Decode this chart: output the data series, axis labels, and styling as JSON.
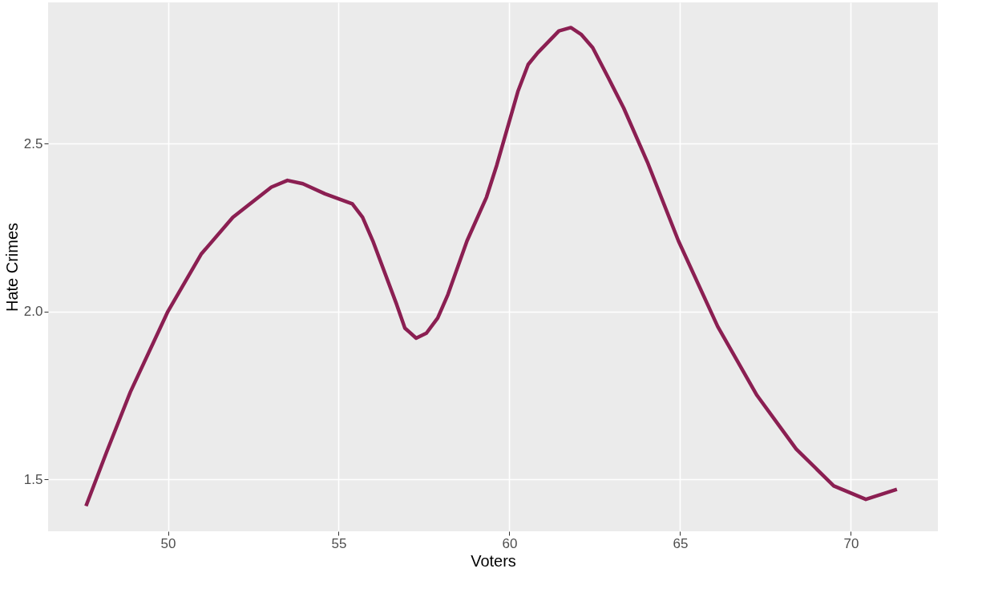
{
  "chart_data": {
    "type": "line",
    "xlabel": "Voters",
    "ylabel": "Hate Crimes",
    "x": [
      47.6,
      48.2,
      48.9,
      50.0,
      50.97,
      51.9,
      53.03,
      53.5,
      53.95,
      54.6,
      55.4,
      55.7,
      56.0,
      56.7,
      56.94,
      57.27,
      57.57,
      57.9,
      58.2,
      58.76,
      59.33,
      59.63,
      60.25,
      60.55,
      60.83,
      61.45,
      61.8,
      62.1,
      62.44,
      62.9,
      63.35,
      64.04,
      64.95,
      66.1,
      67.25,
      68.4,
      69.5,
      70.44,
      71.35
    ],
    "series": [
      {
        "color": "#8b1f52",
        "values": [
          1.42,
          1.58,
          1.76,
          2.0,
          2.17,
          2.28,
          2.37,
          2.39,
          2.38,
          2.35,
          2.32,
          2.28,
          2.21,
          2.02,
          1.95,
          1.92,
          1.935,
          1.98,
          2.05,
          2.21,
          2.34,
          2.435,
          2.655,
          2.735,
          2.77,
          2.835,
          2.845,
          2.825,
          2.785,
          2.695,
          2.605,
          2.445,
          2.21,
          1.955,
          1.75,
          1.59,
          1.48,
          1.44,
          1.47
        ]
      }
    ],
    "xlim": [
      46.49,
      72.55
    ],
    "ylim": [
      1.345,
      2.92
    ],
    "xticks": [
      50,
      55,
      60,
      65,
      70
    ],
    "yticks": [
      {
        "value": 1.5,
        "label": "1.5"
      },
      {
        "value": 2,
        "label": "2.0"
      },
      {
        "value": 2.5,
        "label": "2.5"
      }
    ],
    "grid": true,
    "line_style": "solid",
    "marker": "none",
    "legend": false
  }
}
